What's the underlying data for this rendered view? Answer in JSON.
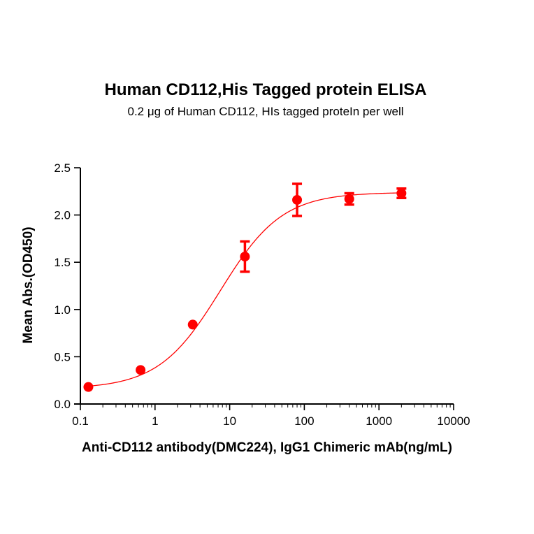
{
  "chart_data": {
    "type": "scatter",
    "title": "Human CD112,His Tagged protein ELISA",
    "subtitle": "0.2 μg of Human CD112, HIs tagged proteIn per well",
    "xlabel": "Anti-CD112 antibody(DMC224), IgG1 Chimeric mAb(ng/mL)",
    "ylabel": "Mean Abs.(OD450)",
    "x_scale": "log",
    "xlim": [
      0.1,
      10000
    ],
    "ylim": [
      0.0,
      2.5
    ],
    "x_ticks": [
      "0.1",
      "1",
      "10",
      "100",
      "1000",
      "10000"
    ],
    "y_ticks": [
      "0.0",
      "0.5",
      "1.0",
      "1.5",
      "2.0",
      "2.5"
    ],
    "grid": false,
    "legend": "none",
    "series": [
      {
        "color": "#ff0000",
        "x": [
          0.128,
          0.64,
          3.2,
          16,
          80,
          400,
          2000
        ],
        "y": [
          0.18,
          0.36,
          0.84,
          1.56,
          2.16,
          2.17,
          2.23
        ],
        "error": [
          0.0,
          0.0,
          0.0,
          0.16,
          0.17,
          0.06,
          0.05
        ]
      }
    ],
    "fit_curve": {
      "type": "4PL",
      "color": "#ff0000",
      "bottom": 0.16,
      "top": 2.24,
      "ec50": 7.5,
      "hill": 1.05
    }
  }
}
